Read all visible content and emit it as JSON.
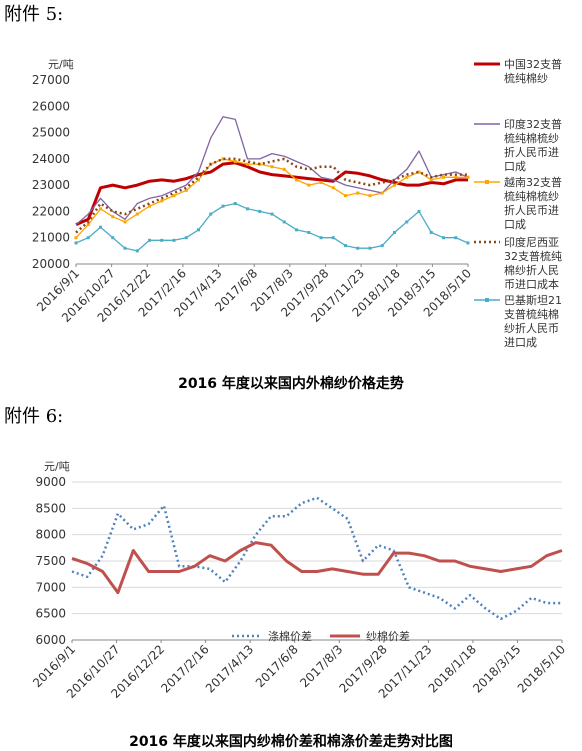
{
  "heading1": "附件 5:",
  "heading2": "附件 6:",
  "chart_data": [
    {
      "type": "line",
      "title": "2016 年度以来国内外棉纱价格走势",
      "ylabel": "元/吨",
      "ylim": [
        20000,
        27000
      ],
      "yticks": [
        "20000",
        "21000",
        "22000",
        "23000",
        "24000",
        "25000",
        "26000",
        "27000"
      ],
      "xticks": [
        "2016/9/1",
        "2016/10/27",
        "2016/12/22",
        "2017/2/16",
        "2017/4/13",
        "2017/6/8",
        "2017/8/3",
        "2017/9/28",
        "2017/11/23",
        "2018/1/18",
        "2018/3/15",
        "2018/5/10"
      ],
      "legend_position": "right",
      "series": [
        {
          "name": "中国32支普梳纯棉纱",
          "color": "#c00000",
          "style": "solid-thick",
          "values": [
            21500,
            21700,
            22900,
            23000,
            22900,
            23000,
            23150,
            23200,
            23150,
            23250,
            23400,
            23500,
            23800,
            23850,
            23700,
            23500,
            23400,
            23350,
            23300,
            23250,
            23200,
            23150,
            23500,
            23450,
            23350,
            23200,
            23100,
            23000,
            23000,
            23100,
            23050,
            23200,
            23200
          ]
        },
        {
          "name": "印度32支普梳纯棉梳纱折人民币进口成本",
          "color": "#8064a2",
          "style": "solid-thin",
          "values": [
            21500,
            21900,
            22500,
            22000,
            21700,
            22300,
            22500,
            22600,
            22800,
            23000,
            23500,
            24800,
            25600,
            25500,
            24000,
            24000,
            24200,
            24100,
            23900,
            23700,
            23300,
            23200,
            23000,
            22900,
            22800,
            22700,
            23200,
            23600,
            24300,
            23300,
            23400,
            23500,
            23300
          ]
        },
        {
          "name": "越南32支普梳纯棉梳纱折人民币进口成本",
          "color": "#ffa500",
          "style": "solid-marker",
          "values": [
            21000,
            21500,
            22100,
            21800,
            21600,
            21900,
            22200,
            22400,
            22600,
            22800,
            23200,
            23800,
            24000,
            23900,
            23800,
            23800,
            23700,
            23600,
            23200,
            23000,
            23100,
            22900,
            22600,
            22700,
            22600,
            22700,
            23000,
            23300,
            23500,
            23200,
            23300,
            23300,
            23300
          ]
        },
        {
          "name": "印度尼西亚32支普梳纯棉纱折人民币进口成本",
          "color": "#8b4513",
          "style": "dotted",
          "values": [
            21200,
            21600,
            22300,
            22000,
            21900,
            22100,
            22300,
            22500,
            22700,
            22900,
            23300,
            23800,
            24000,
            24000,
            23900,
            23800,
            23900,
            24000,
            23700,
            23600,
            23700,
            23700,
            23200,
            23100,
            23000,
            23100,
            23200,
            23400,
            23500,
            23300,
            23400,
            23400,
            23400
          ]
        },
        {
          "name": "巴基斯坦21支普梳纯棉纱折人民币进口成本",
          "color": "#4bacc6",
          "style": "solid-marker",
          "values": [
            20800,
            21000,
            21400,
            21000,
            20600,
            20500,
            20900,
            20900,
            20900,
            21000,
            21300,
            21900,
            22200,
            22300,
            22100,
            22000,
            21900,
            21600,
            21300,
            21200,
            21000,
            21000,
            20700,
            20600,
            20600,
            20700,
            21200,
            21600,
            22000,
            21200,
            21000,
            21000,
            20800
          ]
        }
      ]
    },
    {
      "type": "line",
      "title": "2016 年度以来国内纱棉价差和棉涤价差走势对比图",
      "ylabel": "元/吨",
      "ylim": [
        6000,
        9000
      ],
      "yticks": [
        "6000",
        "6500",
        "7000",
        "7500",
        "8000",
        "8500",
        "9000"
      ],
      "xticks": [
        "2016/9/1",
        "2016/10/27",
        "2016/12/22",
        "2017/2/16",
        "2017/4/13",
        "2017/6/8",
        "2017/8/3",
        "2017/9/28",
        "2017/11/23",
        "2018/1/18",
        "2018/3/15",
        "2018/5/10"
      ],
      "legend_position": "bottom",
      "series": [
        {
          "name": "涤棉价差",
          "color": "#4f81bd",
          "style": "dotted",
          "values": [
            7300,
            7200,
            7600,
            8400,
            8100,
            8200,
            8550,
            7400,
            7400,
            7350,
            7100,
            7500,
            8000,
            8350,
            8350,
            8600,
            8700,
            8500,
            8300,
            7500,
            7800,
            7700,
            7000,
            6900,
            6800,
            6600,
            6850,
            6600,
            6400,
            6550,
            6800,
            6700,
            6700
          ]
        },
        {
          "name": "纱棉价差",
          "color": "#c0504d",
          "style": "solid-thick",
          "values": [
            7550,
            7450,
            7300,
            6900,
            7700,
            7300,
            7300,
            7300,
            7400,
            7600,
            7500,
            7700,
            7850,
            7800,
            7500,
            7300,
            7300,
            7350,
            7300,
            7250,
            7250,
            7650,
            7650,
            7600,
            7500,
            7500,
            7400,
            7350,
            7300,
            7350,
            7400,
            7600,
            7700
          ]
        }
      ]
    }
  ]
}
